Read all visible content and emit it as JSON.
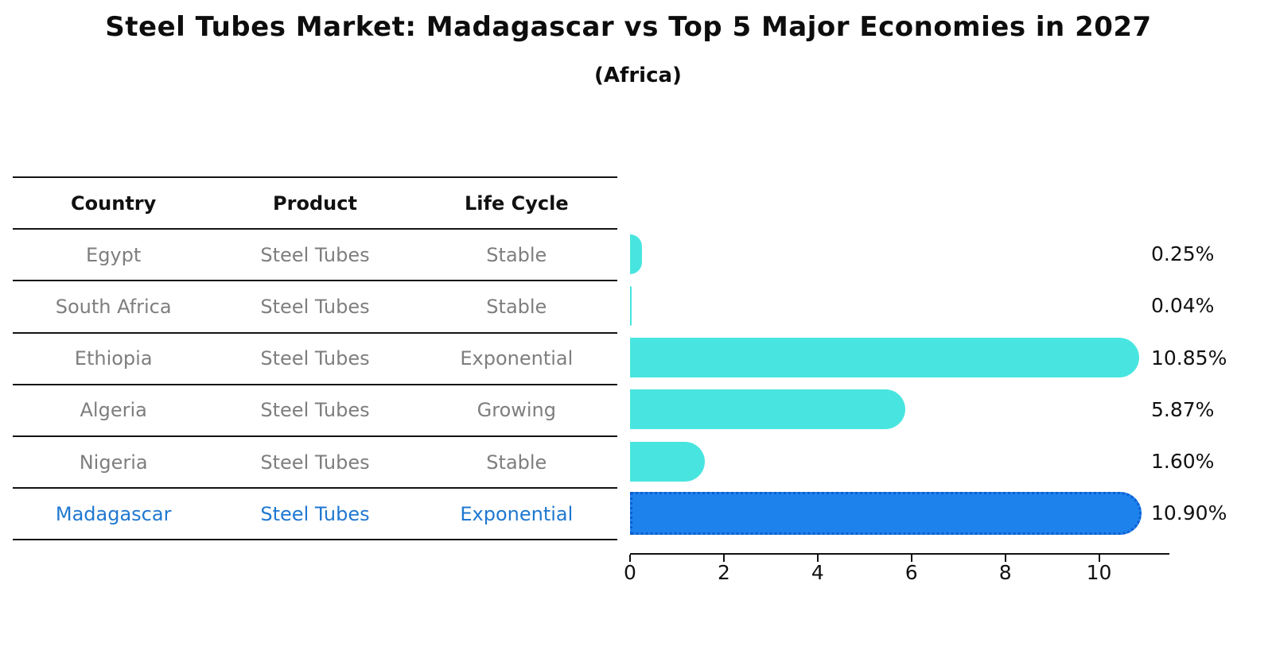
{
  "title": "Steel Tubes Market: Madagascar vs Top 5 Major Economies in 2027",
  "subtitle": "(Africa)",
  "table": {
    "headers": [
      "Country",
      "Product",
      "Life Cycle"
    ],
    "rows": [
      {
        "country": "Egypt",
        "product": "Steel Tubes",
        "life_cycle": "Stable",
        "highlighted": false
      },
      {
        "country": "South Africa",
        "product": "Steel Tubes",
        "life_cycle": "Stable",
        "highlighted": false
      },
      {
        "country": "Ethiopia",
        "product": "Steel Tubes",
        "life_cycle": "Exponential",
        "highlighted": false
      },
      {
        "country": "Algeria",
        "product": "Steel Tubes",
        "life_cycle": "Growing",
        "highlighted": false
      },
      {
        "country": "Nigeria",
        "product": "Steel Tubes",
        "life_cycle": "Stable",
        "highlighted": false
      },
      {
        "country": "Madagascar",
        "product": "Steel Tubes",
        "life_cycle": "Exponential",
        "highlighted": true
      }
    ]
  },
  "chart_data": {
    "type": "bar",
    "orientation": "horizontal",
    "title": "Steel Tubes Market: Madagascar vs Top 5 Major Economies in 2027",
    "subtitle": "(Africa)",
    "categories": [
      "Egypt",
      "South Africa",
      "Ethiopia",
      "Algeria",
      "Nigeria",
      "Madagascar"
    ],
    "values": [
      0.25,
      0.04,
      10.85,
      5.87,
      1.6,
      10.9
    ],
    "value_labels": [
      "0.25%",
      "0.04%",
      "10.85%",
      "5.87%",
      "1.60%",
      "10.90%"
    ],
    "x_ticks": [
      0,
      2,
      4,
      6,
      8,
      10
    ],
    "xlim": [
      0,
      11.5
    ],
    "grid": false,
    "legend": "none",
    "highlight_index": 5,
    "colors": {
      "bar": "#48e5e0",
      "highlight_bar": "#1e82ec",
      "highlight_bar_border": "#0c5ed2",
      "highlight_text": "#1f78d1",
      "row_text": "#7e7e7e",
      "header_text": "#111111",
      "label_text": "#111111"
    }
  }
}
